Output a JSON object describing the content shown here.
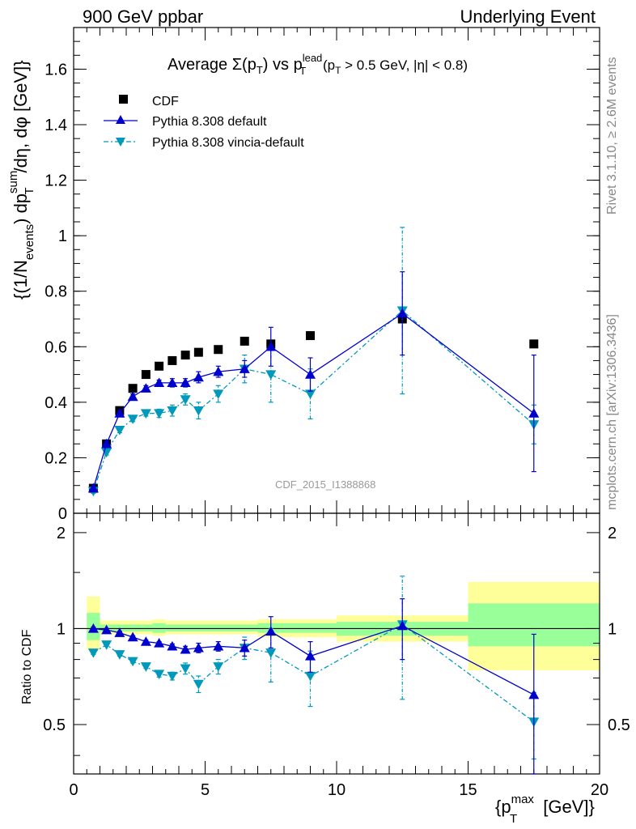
{
  "header": {
    "left": "900 GeV ppbar",
    "right": "Underlying Event"
  },
  "side": {
    "rivet": "Rivet 3.1.10, ≥ 2.6M events",
    "mcplots": "mcplots.cern.ch [arXiv:1306.3436]"
  },
  "watermark": "CDF_2015_I1388868",
  "chart_data": [
    {
      "type": "scatter",
      "title": "Average Σ(pT) vs pT^lead (pT > 0.5 GeV, |η| < 0.8)",
      "title_parts": {
        "a": "Average ",
        "b": "Σ(p",
        "c": "T",
        "d": ") vs p",
        "e": "lead",
        "f": "T",
        "g": " (p",
        "h": "T",
        "i": " > 0.5 GeV, |η| < 0.8)"
      },
      "ylabel": "{(1/N_events) dp_T^sum/dη, dφ [GeV]}",
      "ylabel_parts": {
        "a": "{(1/N",
        "b": "events",
        "c": ") dp",
        "d": "sum",
        "e": "T",
        "f": "/dη, dφ [GeV]}"
      },
      "xlim": [
        0,
        20
      ],
      "ylim": [
        0,
        1.75
      ],
      "yticks": [
        0,
        0.2,
        0.4,
        0.6,
        0.8,
        1,
        1.2,
        1.4,
        1.6
      ],
      "ytick_labels": [
        "0",
        "0.2",
        "0.4",
        "0.6",
        "0.8",
        "1",
        "1.2",
        "1.4",
        "1.6"
      ],
      "legend_position": "top-left",
      "x": [
        0.75,
        1.25,
        1.75,
        2.25,
        2.75,
        3.25,
        3.75,
        4.25,
        4.75,
        5.5,
        6.5,
        7.5,
        9.0,
        12.5,
        17.5
      ],
      "series": [
        {
          "name": "CDF",
          "color": "#000000",
          "marker": "square",
          "values": [
            0.09,
            0.25,
            0.37,
            0.45,
            0.5,
            0.53,
            0.55,
            0.57,
            0.58,
            0.59,
            0.62,
            0.61,
            0.64,
            0.7,
            0.61
          ]
        },
        {
          "name": "Pythia 8.308 default",
          "color": "#0000cc",
          "marker": "triangle-up",
          "line": "solid",
          "values": [
            0.09,
            0.25,
            0.36,
            0.42,
            0.45,
            0.47,
            0.47,
            0.47,
            0.49,
            0.51,
            0.52,
            0.6,
            0.5,
            0.72,
            0.36
          ],
          "errors": [
            0.008,
            0.01,
            0.01,
            0.01,
            0.01,
            0.01,
            0.015,
            0.015,
            0.02,
            0.02,
            0.03,
            0.07,
            0.06,
            0.15,
            0.21
          ]
        },
        {
          "name": "Pythia 8.308 vincia-default",
          "color": "#0099bb",
          "marker": "triangle-down",
          "line": "dash-dot",
          "values": [
            0.08,
            0.22,
            0.3,
            0.34,
            0.36,
            0.36,
            0.37,
            0.41,
            0.37,
            0.43,
            0.52,
            0.5,
            0.43,
            0.73,
            0.32
          ],
          "errors": [
            0.008,
            0.01,
            0.01,
            0.01,
            0.01,
            0.015,
            0.02,
            0.02,
            0.03,
            0.03,
            0.05,
            0.1,
            0.09,
            0.3,
            0.07
          ]
        }
      ]
    },
    {
      "type": "scatter",
      "ylabel": "Ratio to CDF",
      "xlabel": "{p_T^max [GeV]}",
      "xlabel_parts": {
        "a": "{p",
        "b": "max",
        "c": "T",
        "d": " [GeV]}"
      },
      "xlim": [
        0,
        20
      ],
      "ylim": [
        0.35,
        2.3
      ],
      "xticks": [
        0,
        5,
        10,
        15,
        20
      ],
      "xtick_labels": [
        "0",
        "5",
        "10",
        "15",
        "20"
      ],
      "yticks": [
        0.5,
        1,
        2
      ],
      "ytick_labels": [
        "0.5",
        "1",
        "2"
      ],
      "reference_line": 1,
      "bands": [
        {
          "x0": 0.5,
          "x1": 1.0,
          "yellow": [
            0.86,
            1.26
          ],
          "green": [
            0.92,
            1.12
          ]
        },
        {
          "x0": 1.0,
          "x1": 3.0,
          "yellow": [
            0.96,
            1.06
          ],
          "green": [
            0.98,
            1.03
          ]
        },
        {
          "x0": 3.0,
          "x1": 3.5,
          "yellow": [
            0.95,
            1.07
          ],
          "green": [
            0.97,
            1.04
          ]
        },
        {
          "x0": 3.5,
          "x1": 7.0,
          "yellow": [
            0.96,
            1.06
          ],
          "green": [
            0.98,
            1.03
          ]
        },
        {
          "x0": 7.0,
          "x1": 10.0,
          "yellow": [
            0.94,
            1.07
          ],
          "green": [
            0.97,
            1.04
          ]
        },
        {
          "x0": 10.0,
          "x1": 15.0,
          "yellow": [
            0.91,
            1.1
          ],
          "green": [
            0.95,
            1.05
          ]
        },
        {
          "x0": 15.0,
          "x1": 20.0,
          "yellow": [
            0.74,
            1.4
          ],
          "green": [
            0.88,
            1.2
          ]
        }
      ],
      "series": [
        {
          "name": "Pythia 8.308 default",
          "color": "#0000cc",
          "marker": "triangle-up",
          "values": [
            1.0,
            0.99,
            0.97,
            0.94,
            0.91,
            0.9,
            0.88,
            0.86,
            0.87,
            0.88,
            0.87,
            0.98,
            0.82,
            1.02,
            0.62
          ],
          "errors": [
            0.01,
            0.01,
            0.01,
            0.01,
            0.01,
            0.01,
            0.015,
            0.02,
            0.03,
            0.03,
            0.05,
            0.11,
            0.09,
            0.22,
            0.34
          ]
        },
        {
          "name": "Pythia 8.308 vincia-default",
          "color": "#0099bb",
          "marker": "triangle-down",
          "values": [
            0.84,
            0.89,
            0.83,
            0.79,
            0.76,
            0.72,
            0.71,
            0.75,
            0.67,
            0.76,
            0.87,
            0.84,
            0.71,
            1.03,
            0.51
          ],
          "errors": [
            0.01,
            0.01,
            0.01,
            0.01,
            0.01,
            0.015,
            0.02,
            0.03,
            0.04,
            0.04,
            0.07,
            0.16,
            0.14,
            0.43,
            0.12
          ]
        }
      ]
    }
  ]
}
